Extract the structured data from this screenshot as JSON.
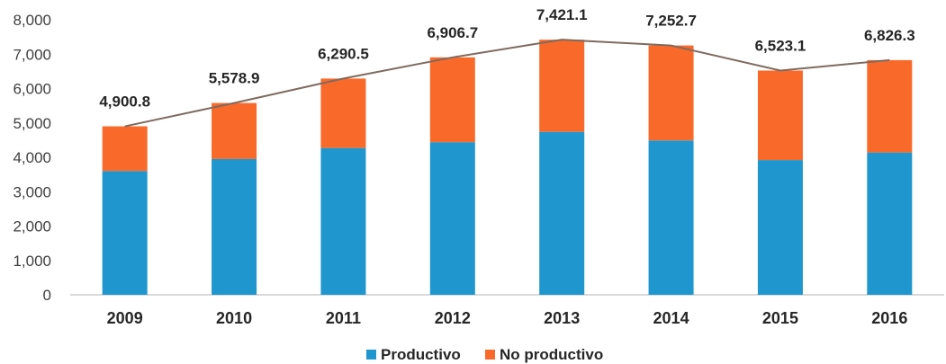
{
  "chart_data": {
    "type": "bar",
    "stacked": true,
    "categories": [
      "2009",
      "2010",
      "2011",
      "2012",
      "2013",
      "2014",
      "2015",
      "2016"
    ],
    "series": [
      {
        "name": "Productivo",
        "color": "#1F97CE",
        "values": [
          3600,
          3950,
          4270,
          4440,
          4740,
          4490,
          3920,
          4140
        ]
      },
      {
        "name": "No productivo",
        "color": "#F96A2A",
        "values": [
          1300.8,
          1628.9,
          2020.5,
          2466.7,
          2681.1,
          2762.7,
          2603.1,
          2686.3
        ]
      }
    ],
    "totals": [
      4900.8,
      5578.9,
      6290.5,
      6906.7,
      7421.1,
      7252.7,
      6523.1,
      6826.3
    ],
    "total_labels": [
      "4,900.8",
      "5,578.9",
      "6,290.5",
      "6,906.7",
      "7,421.1",
      "7,252.7",
      "6,523.1",
      "6,826.3"
    ],
    "total_line_color": "#7F6A5F",
    "yticks": [
      0,
      1000,
      2000,
      3000,
      4000,
      5000,
      6000,
      7000,
      8000
    ],
    "ytick_labels": [
      "0",
      "1,000",
      "2,000",
      "3,000",
      "4,000",
      "5,000",
      "6,000",
      "7,000",
      "8,000"
    ],
    "ylim": [
      0,
      8000
    ],
    "grid": false,
    "legend_position": "bottom"
  }
}
